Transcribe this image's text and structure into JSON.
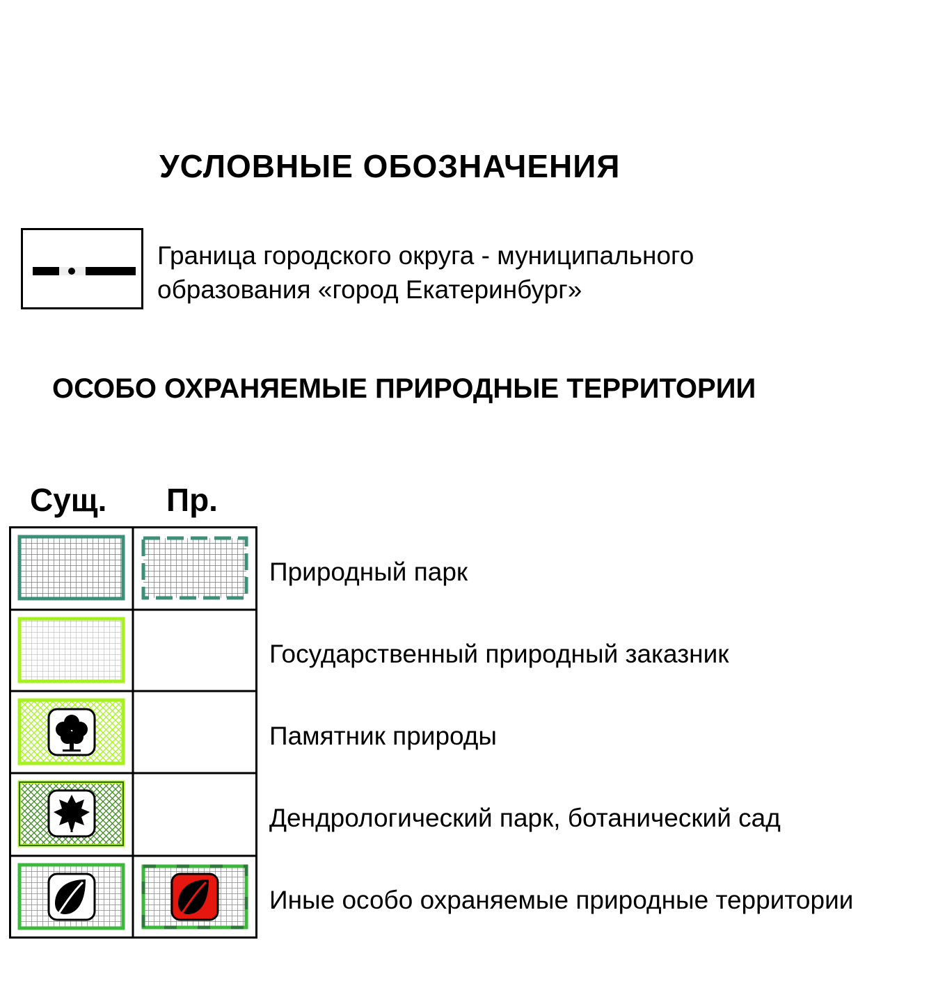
{
  "legend": {
    "title": "УСЛОВНЫЕ ОБОЗНАЧЕНИЯ",
    "boundary": {
      "line1": "Граница городского округа - муниципального",
      "line2": "образования «город Екатеринбург»",
      "symbol": "dash-dot-boundary-line"
    },
    "section_title": "ОСОБО ОХРАНЯЕМЫЕ ПРИРОДНЫЕ ТЕРРИТОРИИ",
    "columns": {
      "existing": "Сущ.",
      "planned": "Пр."
    },
    "rows": [
      {
        "label": "Природный парк",
        "existing_symbol": "grid-teal-solid",
        "planned_symbol": "grid-teal-dashed"
      },
      {
        "label": "Государственный природный заказник",
        "existing_symbol": "grid-lime-solid",
        "planned_symbol": ""
      },
      {
        "label": "Памятник природы",
        "existing_symbol": "crosshatch-lime-tree-icon",
        "planned_symbol": ""
      },
      {
        "label": "Дендрологический парк, ботанический сад",
        "existing_symbol": "crosshatch-green-maple-leaf-icon",
        "planned_symbol": ""
      },
      {
        "label": "Иные особо охраняемые природные территории",
        "existing_symbol": "grid-green-leaf-icon",
        "planned_symbol": "grid-green-dashed-red-leaf-icon"
      }
    ],
    "colors": {
      "teal": "#3d8f78",
      "lime": "#a6f21f",
      "green": "#3cb83c",
      "dark_green": "#2e6e14",
      "red": "#e6170f"
    }
  }
}
